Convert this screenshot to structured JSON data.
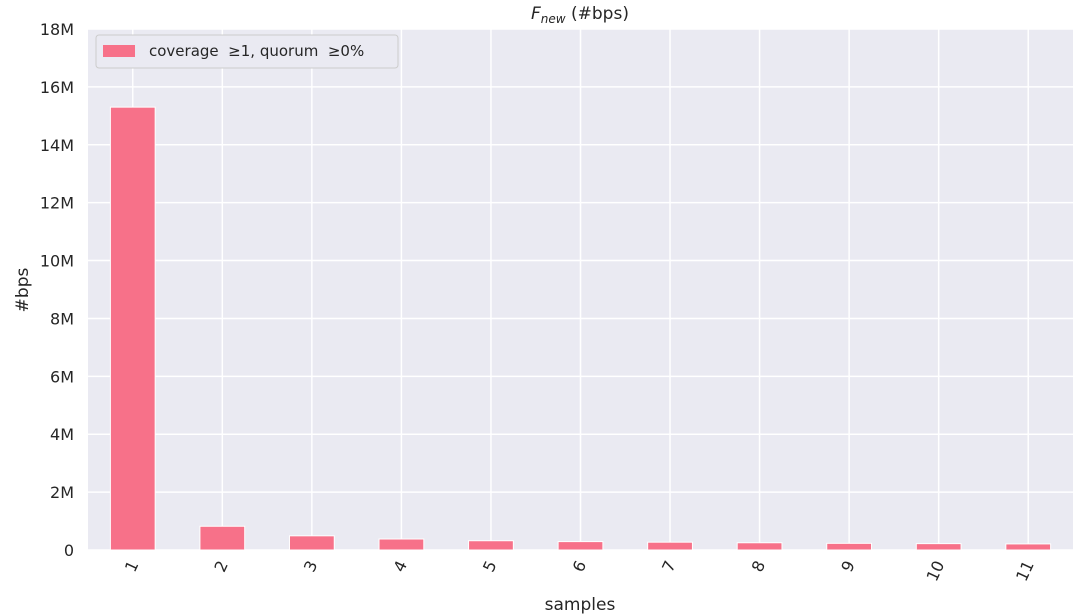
{
  "chart_data": {
    "type": "bar",
    "title_main": "F",
    "title_sub": "new",
    "title_rest": " (#bps)",
    "xlabel": "samples",
    "ylabel": "#bps",
    "categories": [
      "1",
      "2",
      "3",
      "4",
      "5",
      "6",
      "7",
      "8",
      "9",
      "10",
      "11"
    ],
    "series": [
      {
        "name": "coverage  ≥1, quorum  ≥0%",
        "color": "#f77189",
        "values": [
          15300000,
          820000,
          490000,
          380000,
          320000,
          290000,
          270000,
          250000,
          230000,
          220000,
          210000
        ]
      }
    ],
    "ylim": [
      0,
      18000000
    ],
    "yticks": [
      0,
      2000000,
      4000000,
      6000000,
      8000000,
      10000000,
      12000000,
      14000000,
      16000000,
      18000000
    ],
    "ytick_labels": [
      "0",
      "2M",
      "4M",
      "6M",
      "8M",
      "10M",
      "12M",
      "14M",
      "16M",
      "18M"
    ],
    "grid": true,
    "legend_position": "top-left",
    "background_color": "#eaeaf2",
    "grid_color": "#ffffff"
  }
}
